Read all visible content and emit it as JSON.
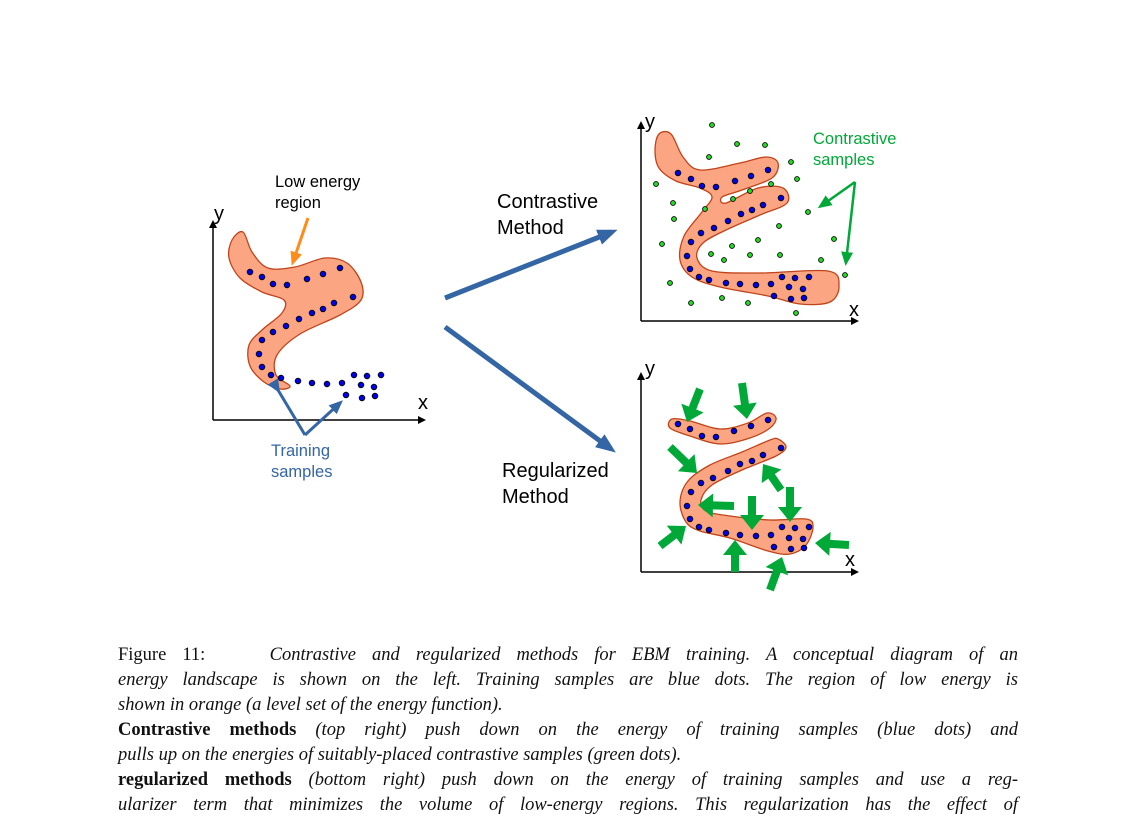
{
  "figure": {
    "left_panel": {
      "y_label": "y",
      "x_label": "x",
      "low_energy_label": [
        "Low energy",
        "region"
      ],
      "training_label": [
        "Training",
        "samples"
      ]
    },
    "contrastive_method_label": [
      "Contrastive",
      "Method"
    ],
    "regularized_method_label": [
      "Regularized",
      "Method"
    ],
    "top_right_panel": {
      "y_label": "y",
      "x_label": "x",
      "contrastive_samples_label": [
        "Contrastive",
        "samples"
      ]
    },
    "bottom_right_panel": {
      "y_label": "y",
      "x_label": "x"
    },
    "colors": {
      "region_fill": "#fca582",
      "region_stroke": "#c0441a",
      "training_dot": "#0000ee",
      "contrastive_dot": "#22dd22",
      "arrow_blue": "#3465a4",
      "arrow_orange": "#ff8c1a",
      "arrow_green": "#00a838",
      "label_blue": "#3465a4",
      "label_green": "#00a838"
    }
  },
  "caption": {
    "figure_label": "Figure 11:",
    "p1_lines": [
      "Contrastive and regularized methods for EBM training. A conceptual diagram of an",
      "energy landscape is shown on the left. Training samples are blue dots. The region of low energy is",
      "shown in orange (a level set of the energy function)."
    ],
    "p2_bold": "Contrastive methods",
    "p2_lines": [
      "(top right) push down on the energy of training samples (blue dots) and",
      "pulls up on the energies of suitably-placed contrastive samples (green dots)."
    ],
    "p3_bold": "regularized methods",
    "p3_lines": [
      "(bottom right) push down on the energy of training samples and use a reg-",
      "ularizer term that minimizes the volume of low-energy regions. This regularization has the effect of"
    ]
  }
}
